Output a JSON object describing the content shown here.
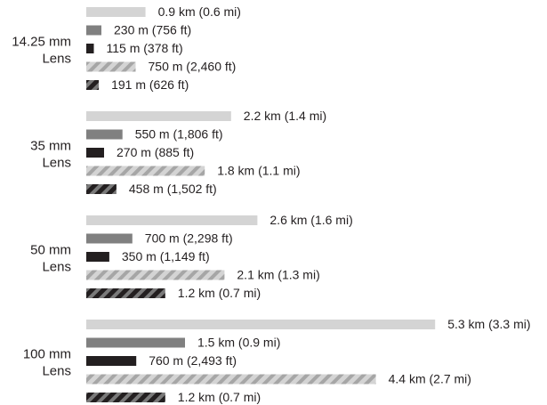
{
  "chart_data": {
    "type": "bar",
    "orientation": "horizontal",
    "unit": "km",
    "title": "",
    "xlabel": "",
    "ylabel": "",
    "grid": false,
    "legend": "none",
    "categories": [
      [
        "14.25 mm",
        "Lens"
      ],
      [
        "35 mm",
        "Lens"
      ],
      [
        "50 mm",
        "Lens"
      ],
      [
        "100 mm",
        "Lens"
      ]
    ],
    "series": [
      {
        "style": "solid",
        "color": "#d4d4d4",
        "values": [
          0.9,
          2.2,
          2.6,
          5.3
        ],
        "labels": [
          "0.9 km (0.6 mi)",
          "2.2 km (1.4 mi)",
          "2.6 km (1.6 mi)",
          "5.3 km (3.3 mi)"
        ]
      },
      {
        "style": "solid",
        "color": "#808080",
        "values": [
          0.23,
          0.55,
          0.7,
          1.5
        ],
        "labels": [
          "230 m (756 ft)",
          "550 m (1,806 ft)",
          "700 m (2,298 ft)",
          "1.5 km (0.9 mi)"
        ]
      },
      {
        "style": "solid",
        "color": "#231f20",
        "values": [
          0.115,
          0.27,
          0.35,
          0.76
        ],
        "labels": [
          "115 m (378 ft)",
          "270 m (885 ft)",
          "350 m (1,149 ft)",
          "760 m (2,493 ft)"
        ]
      },
      {
        "style": "hatched",
        "color": "#d4d4d4",
        "stripe_color": "#a6a6a6",
        "values": [
          0.75,
          1.8,
          2.1,
          4.4
        ],
        "labels": [
          "750 m (2,460 ft)",
          "1.8 km (1.1 mi)",
          "2.1 km (1.3 mi)",
          "4.4 km (2.7 mi)"
        ]
      },
      {
        "style": "hatched",
        "color": "#231f20",
        "stripe_color": "#7a7a7a",
        "values": [
          0.191,
          0.458,
          1.2,
          1.2
        ],
        "labels": [
          "191 m (626 ft)",
          "458 m (1,502 ft)",
          "1.2 km (0.7 mi)",
          "1.2 km (0.7 mi)"
        ]
      }
    ],
    "colors": {
      "text": "#231f20"
    }
  }
}
